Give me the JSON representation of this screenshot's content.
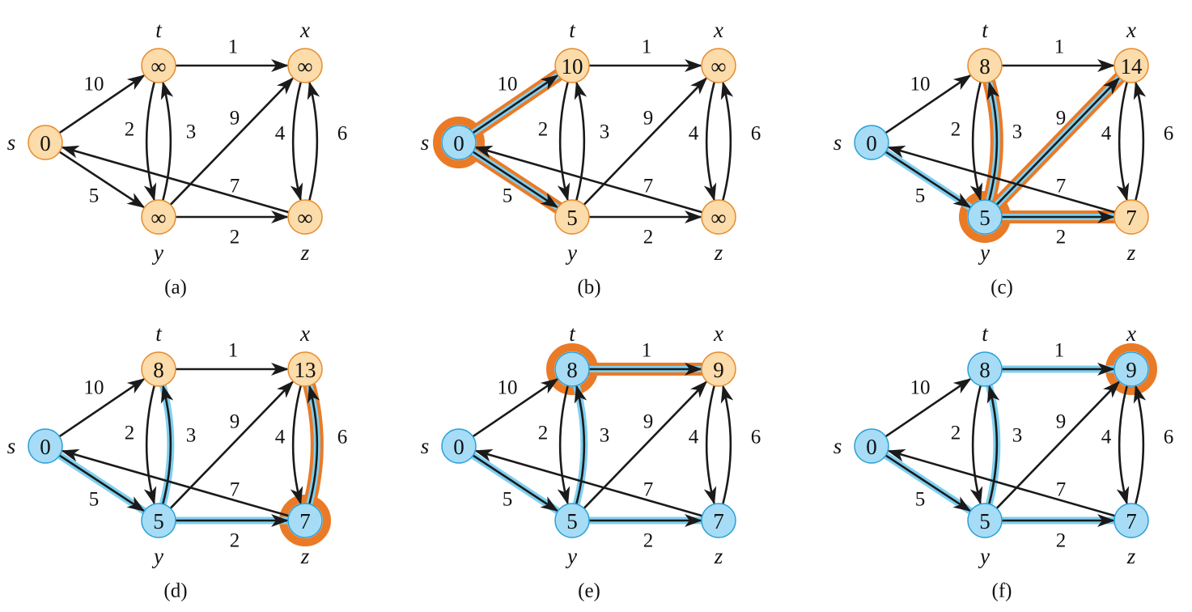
{
  "colors": {
    "unvisited_fill": "#fbdcaa",
    "unvisited_stroke": "#e88a2c",
    "visited_fill": "#a6dcf5",
    "visited_stroke": "#2a9fd6",
    "current_ring": "#ea7a26",
    "tree_edge": "#7fcff0",
    "relax_edge": "#ea7a26",
    "edge": "#1a1a1a"
  },
  "vertices": [
    "s",
    "t",
    "x",
    "y",
    "z"
  ],
  "edges": [
    {
      "from": "s",
      "to": "t",
      "w": "10"
    },
    {
      "from": "s",
      "to": "y",
      "w": "5"
    },
    {
      "from": "t",
      "to": "x",
      "w": "1"
    },
    {
      "from": "t",
      "to": "y",
      "w": "2"
    },
    {
      "from": "y",
      "to": "t",
      "w": "3"
    },
    {
      "from": "y",
      "to": "x",
      "w": "9"
    },
    {
      "from": "y",
      "to": "z",
      "w": "2"
    },
    {
      "from": "x",
      "to": "z",
      "w": "4"
    },
    {
      "from": "z",
      "to": "x",
      "w": "6"
    },
    {
      "from": "z",
      "to": "s",
      "w": "7"
    }
  ],
  "panels": [
    {
      "caption": "(a)",
      "dist": {
        "s": "0",
        "t": "∞",
        "x": "∞",
        "y": "∞",
        "z": "∞"
      },
      "visited": [],
      "current": null,
      "tree": [],
      "relax": []
    },
    {
      "caption": "(b)",
      "dist": {
        "s": "0",
        "t": "10",
        "x": "∞",
        "y": "5",
        "z": "∞"
      },
      "visited": [
        "s"
      ],
      "current": "s",
      "tree": [],
      "relax": [
        "s-t",
        "s-y"
      ]
    },
    {
      "caption": "(c)",
      "dist": {
        "s": "0",
        "t": "8",
        "x": "14",
        "y": "5",
        "z": "7"
      },
      "visited": [
        "s",
        "y"
      ],
      "current": "y",
      "tree": [
        "s-y"
      ],
      "relax": [
        "y-t",
        "y-x",
        "y-z"
      ]
    },
    {
      "caption": "(d)",
      "dist": {
        "s": "0",
        "t": "8",
        "x": "13",
        "y": "5",
        "z": "7"
      },
      "visited": [
        "s",
        "y",
        "z"
      ],
      "current": "z",
      "tree": [
        "s-y",
        "y-t",
        "y-z"
      ],
      "relax": [
        "z-x"
      ]
    },
    {
      "caption": "(e)",
      "dist": {
        "s": "0",
        "t": "8",
        "x": "9",
        "y": "5",
        "z": "7"
      },
      "visited": [
        "s",
        "y",
        "z",
        "t"
      ],
      "current": "t",
      "tree": [
        "s-y",
        "y-t",
        "y-z"
      ],
      "relax": [
        "t-x"
      ]
    },
    {
      "caption": "(f)",
      "dist": {
        "s": "0",
        "t": "8",
        "x": "9",
        "y": "5",
        "z": "7"
      },
      "visited": [
        "s",
        "y",
        "z",
        "t",
        "x"
      ],
      "current": "x",
      "tree": [
        "s-y",
        "y-t",
        "y-z",
        "t-x"
      ],
      "relax": []
    }
  ]
}
